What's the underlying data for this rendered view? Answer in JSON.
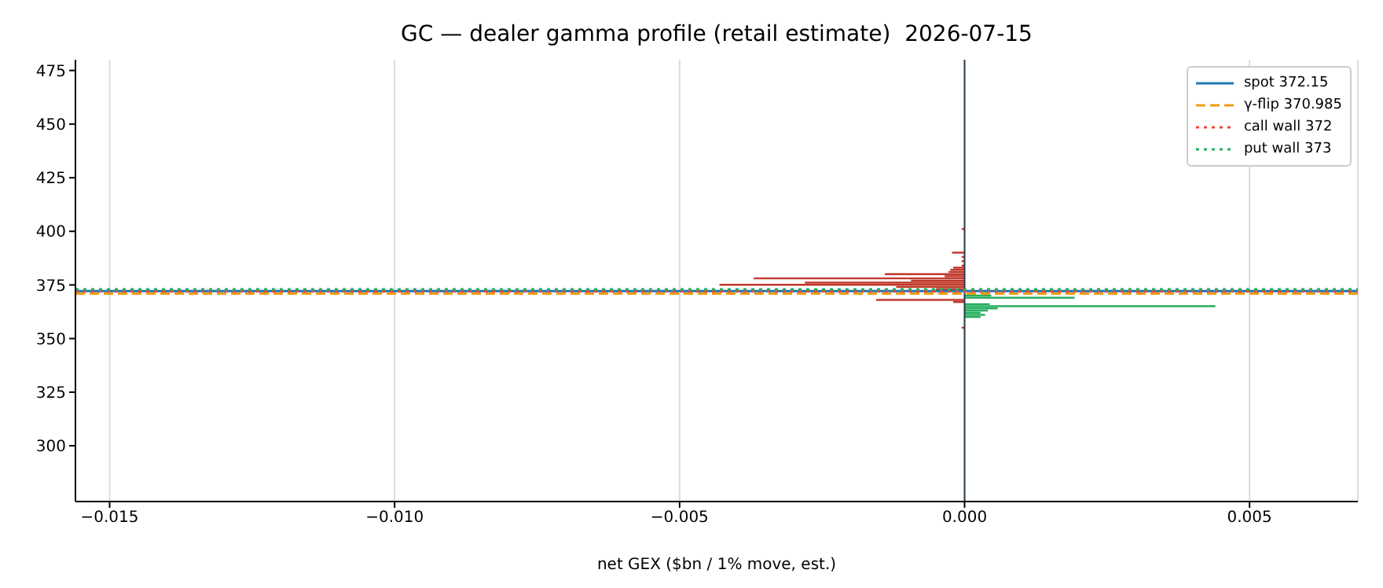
{
  "chart_data": {
    "type": "bar",
    "orientation": "horizontal",
    "title": "GC — dealer gamma profile (retail estimate)  2026-07-15",
    "xlabel": "net GEX ($bn / 1% move, est.)",
    "x": [
      401,
      390,
      388,
      386,
      384,
      383,
      382,
      381,
      380,
      379,
      378,
      377,
      376,
      375,
      374,
      373,
      370,
      369,
      368,
      367,
      366,
      365,
      364,
      363,
      362,
      361,
      360,
      355
    ],
    "values": [
      -5e-05,
      -0.00022,
      -5e-05,
      -5e-05,
      -5e-05,
      -0.0002,
      -0.00025,
      -0.00028,
      -0.0014,
      -0.00035,
      -0.0037,
      -0.00094,
      -0.0028,
      -0.0043,
      -0.0012,
      -0.0005,
      0.00047,
      0.00193,
      -0.00155,
      -0.0002,
      0.00044,
      0.0044,
      0.00058,
      0.00041,
      0.00028,
      0.00036,
      0.00028,
      -5e-05
    ],
    "colors": [
      "#c0392b",
      "#c0392b",
      "#c0392b",
      "#c0392b",
      "#c0392b",
      "#c0392b",
      "#c0392b",
      "#c0392b",
      "#c0392b",
      "#c0392b",
      "#c0392b",
      "#c0392b",
      "#c0392b",
      "#c0392b",
      "#c0392b",
      "#c0392b",
      "#27ae60",
      "#27ae60",
      "#c0392b",
      "#c0392b",
      "#27ae60",
      "#27ae60",
      "#27ae60",
      "#27ae60",
      "#27ae60",
      "#27ae60",
      "#27ae60",
      "#c0392b"
    ],
    "xlim": [
      -0.0156,
      0.0069
    ],
    "xticks": [
      {
        "value": -0.015,
        "label": "−0.015"
      },
      {
        "value": -0.01,
        "label": "−0.010"
      },
      {
        "value": -0.005,
        "label": "−0.005"
      },
      {
        "value": 0,
        "label": "0.000"
      },
      {
        "value": 0.005,
        "label": "0.005"
      }
    ],
    "ylim": [
      274,
      480
    ],
    "yticks": [
      300,
      325,
      350,
      375,
      400,
      425,
      450,
      475
    ],
    "grid": "x",
    "legend": "top right",
    "ref_lines": [
      {
        "axis": "x",
        "value": 0,
        "color": "#2c3e50",
        "line_style": "solid"
      },
      {
        "axis": "y",
        "value": 372.15,
        "label": "spot 372.15",
        "color": "#1f77b4",
        "line_style": "solid"
      },
      {
        "axis": "y",
        "value": 370.985,
        "label": "γ-flip 370.985",
        "color": "#f39c12",
        "line_style": "dashed"
      },
      {
        "axis": "y",
        "value": 372,
        "label": "call wall 372",
        "color": "#e74c3c",
        "line_style": "dotted"
      },
      {
        "axis": "y",
        "value": 373,
        "label": "put wall 373",
        "color": "#27ae60",
        "line_style": "dotted"
      }
    ]
  }
}
